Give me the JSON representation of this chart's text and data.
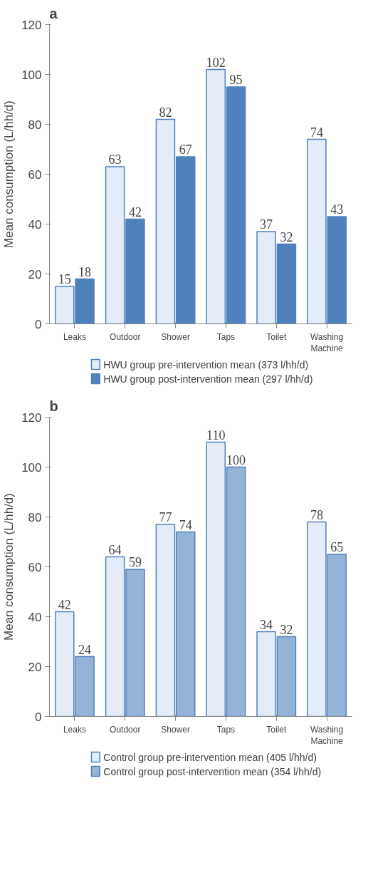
{
  "chart_data": [
    {
      "type": "bar",
      "title": "a",
      "ylabel": "Mean consumption (L/hh/d)",
      "categories": [
        "Leaks",
        "Outdoor",
        "Shower",
        "Taps",
        "Toilet",
        "Washing Machine"
      ],
      "ylim": [
        0,
        120
      ],
      "yticks": [
        0,
        20,
        40,
        60,
        80,
        100,
        120
      ],
      "grid": false,
      "legend": "bottom",
      "data_labels": true,
      "series": [
        {
          "name": "HWU group pre-intervention mean (373 l/hh/d)",
          "color": "#e4ecf7",
          "values": [
            15,
            63,
            82,
            102,
            37,
            74
          ]
        },
        {
          "name": "HWU group post-intervention mean (297 l/hh/d)",
          "color": "#4f81bd",
          "values": [
            18,
            42,
            67,
            95,
            32,
            43
          ]
        }
      ]
    },
    {
      "type": "bar",
      "title": "b",
      "ylabel": "Mean consumption (L/hh/d)",
      "categories": [
        "Leaks",
        "Outdoor",
        "Shower",
        "Taps",
        "Toilet",
        "Washing Machine"
      ],
      "ylim": [
        0,
        120
      ],
      "yticks": [
        0,
        20,
        40,
        60,
        80,
        100,
        120
      ],
      "grid": false,
      "legend": "bottom",
      "data_labels": true,
      "series": [
        {
          "name": "Control group pre-intervention mean (405 l/hh/d)",
          "color": "#e4ecf7",
          "values": [
            42,
            64,
            77,
            110,
            34,
            78
          ]
        },
        {
          "name": "Control group post-intervention mean (354 l/hh/d)",
          "color": "#95b3d7",
          "values": [
            24,
            59,
            74,
            100,
            32,
            65
          ]
        }
      ]
    }
  ]
}
